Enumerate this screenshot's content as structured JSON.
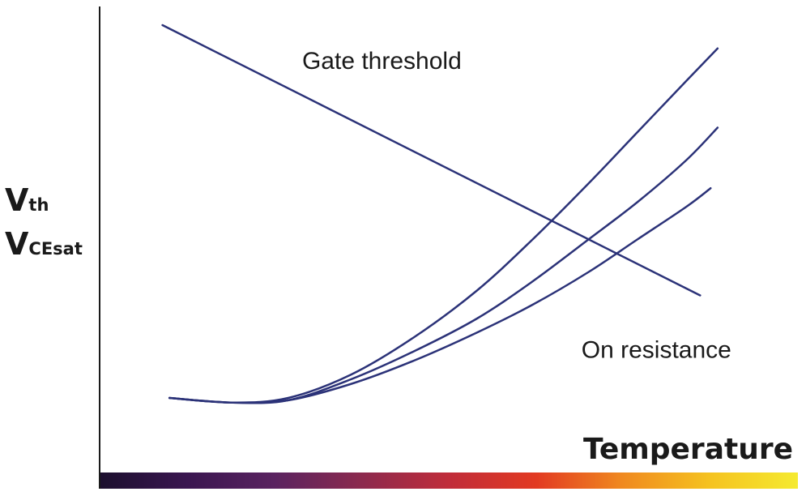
{
  "chart_data": {
    "type": "line",
    "title": "",
    "xlabel": "Temperature",
    "ylabel": [
      {
        "main": "V",
        "sub": "th"
      },
      {
        "main": "V",
        "sub": "CEsat"
      }
    ],
    "grid": false,
    "legend": "none",
    "annotations": [
      {
        "text": "Gate threshold",
        "x": 0.29,
        "y": 0.88
      },
      {
        "text": "On resistance",
        "x": 0.69,
        "y": 0.26
      }
    ],
    "xlim": [
      0,
      1
    ],
    "ylim": [
      0,
      1
    ],
    "line_color": "#2b3278",
    "axis_gradient": [
      "#1c0f2e",
      "#3a1650",
      "#5a2360",
      "#8c2a4e",
      "#c02c3a",
      "#e23a22",
      "#f08a20",
      "#f5c320",
      "#f5ea30"
    ],
    "series": [
      {
        "values": [
          [
            0.09,
            0.96
          ],
          [
            0.86,
            0.38
          ]
        ]
      },
      {
        "values": [
          [
            0.1,
            0.16
          ],
          [
            0.19,
            0.15
          ],
          [
            0.27,
            0.16
          ],
          [
            0.36,
            0.21
          ],
          [
            0.45,
            0.29
          ],
          [
            0.54,
            0.39
          ],
          [
            0.62,
            0.5
          ],
          [
            0.7,
            0.62
          ],
          [
            0.77,
            0.73
          ],
          [
            0.84,
            0.84
          ],
          [
            0.885,
            0.91
          ]
        ]
      },
      {
        "values": [
          [
            0.1,
            0.16
          ],
          [
            0.19,
            0.15
          ],
          [
            0.27,
            0.155
          ],
          [
            0.36,
            0.2
          ],
          [
            0.45,
            0.26
          ],
          [
            0.54,
            0.33
          ],
          [
            0.62,
            0.41
          ],
          [
            0.7,
            0.5
          ],
          [
            0.77,
            0.58
          ],
          [
            0.84,
            0.67
          ],
          [
            0.885,
            0.74
          ]
        ]
      },
      {
        "values": [
          [
            0.1,
            0.16
          ],
          [
            0.19,
            0.15
          ],
          [
            0.27,
            0.155
          ],
          [
            0.36,
            0.19
          ],
          [
            0.45,
            0.24
          ],
          [
            0.54,
            0.3
          ],
          [
            0.62,
            0.36
          ],
          [
            0.7,
            0.43
          ],
          [
            0.77,
            0.5
          ],
          [
            0.84,
            0.57
          ],
          [
            0.875,
            0.61
          ]
        ]
      }
    ]
  }
}
